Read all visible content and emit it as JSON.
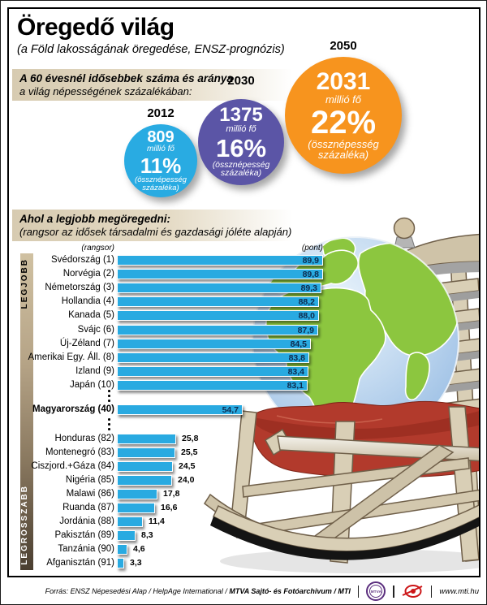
{
  "title": "Öregedő világ",
  "subtitle": "(a Föld lakosságának öregedése, ENSZ-prognózis)",
  "intro": {
    "line1": "A 60 évesnél idősebbek száma és aránya",
    "line2": "a világ népességének százalékában:"
  },
  "bubbles": [
    {
      "year": "2012",
      "value": "809",
      "unit": "millió fő",
      "pct": "11%",
      "note": "(össznépesség százaléka)",
      "color": "#29abe2"
    },
    {
      "year": "2030",
      "value": "1375",
      "unit": "millió fő",
      "pct": "16%",
      "note": "(össznépesség százaléka)",
      "color": "#5b55a6"
    },
    {
      "year": "2050",
      "value": "2031",
      "unit": "millió fő",
      "pct": "22%",
      "note": "(össznépesség százaléka)",
      "color": "#f7941e"
    }
  ],
  "ranking": {
    "header1": "Ahol a legjobb megöregedni:",
    "header2": "(rangsor az idősek társadalmi és gazdasági jóléte alapján)",
    "col_left": "(rangsor)",
    "col_right": "(pont)",
    "side_top": "LEGJOBB",
    "side_bottom": "LEGROSSZABB",
    "bar_color": "#29aae1",
    "groups": [
      {
        "name": "top",
        "rows": [
          {
            "label": "Svédország (1)",
            "value": 89.9,
            "display": "89,9"
          },
          {
            "label": "Norvégia (2)",
            "value": 89.8,
            "display": "89,8"
          },
          {
            "label": "Németország (3)",
            "value": 89.3,
            "display": "89,3"
          },
          {
            "label": "Hollandia (4)",
            "value": 88.2,
            "display": "88,2"
          },
          {
            "label": "Kanada (5)",
            "value": 88.0,
            "display": "88,0"
          },
          {
            "label": "Svájc (6)",
            "value": 87.9,
            "display": "87,9"
          },
          {
            "label": "Új-Zéland (7)",
            "value": 84.5,
            "display": "84,5"
          },
          {
            "label": "Amerikai Egy. Áll. (8)",
            "value": 83.8,
            "display": "83,8"
          },
          {
            "label": "Izland (9)",
            "value": 83.4,
            "display": "83,4"
          },
          {
            "label": "Japán (10)",
            "value": 83.1,
            "display": "83,1"
          }
        ]
      },
      {
        "name": "hungary",
        "rows": [
          {
            "label": "Magyarország (40)",
            "value": 54.7,
            "display": "54,7",
            "bold": true
          }
        ]
      },
      {
        "name": "bottom",
        "rows": [
          {
            "label": "Honduras (82)",
            "value": 25.8,
            "display": "25,8"
          },
          {
            "label": "Montenegró (83)",
            "value": 25.5,
            "display": "25,5"
          },
          {
            "label": "Ciszjord.+Gáza (84)",
            "value": 24.5,
            "display": "24,5"
          },
          {
            "label": "Nigéria (85)",
            "value": 24.0,
            "display": "24,0"
          },
          {
            "label": "Malawi (86)",
            "value": 17.8,
            "display": "17,8"
          },
          {
            "label": "Ruanda (87)",
            "value": 16.6,
            "display": "16,6"
          },
          {
            "label": "Jordánia (88)",
            "value": 11.4,
            "display": "11,4"
          },
          {
            "label": "Pakisztán (89)",
            "value": 8.3,
            "display": "8,3"
          },
          {
            "label": "Tanzánia (90)",
            "value": 4.6,
            "display": "4,6"
          },
          {
            "label": "Afganisztán (91)",
            "value": 3.3,
            "display": "3,3"
          }
        ]
      }
    ]
  },
  "footer": {
    "source_normal": "Forrás: ENSZ Népesedési Alap / HelpAge International / ",
    "source_bold": "MTVA Sajtó- és Fotóarchivum / MTI",
    "mtva_text": "MTVA",
    "site": "www.mti.hu"
  },
  "chart_data": [
    {
      "type": "bar",
      "variant": "proportional-bubbles",
      "title": "A 60 évesnél idősebbek száma és aránya a világ népességének százalékában (ENSZ-prognózis)",
      "categories": [
        "2012",
        "2030",
        "2050"
      ],
      "series": [
        {
          "name": "millió fő",
          "values": [
            809,
            1375,
            2031
          ]
        },
        {
          "name": "össznépesség százaléka (%)",
          "values": [
            11,
            16,
            22
          ]
        }
      ],
      "legend_position": "none",
      "colors": [
        "#29abe2",
        "#5b55a6",
        "#f7941e"
      ]
    },
    {
      "type": "bar",
      "orientation": "horizontal",
      "title": "Ahol a legjobb megöregedni (rangsor az idősek társadalmi és gazdasági jóléte alapján)",
      "xlabel": "(pont)",
      "ylabel": "(rangsor)",
      "xlim": [
        0,
        90
      ],
      "grid": false,
      "categories": [
        "Svédország",
        "Norvégia",
        "Németország",
        "Hollandia",
        "Kanada",
        "Svájc",
        "Új-Zéland",
        "Amerikai Egy. Áll.",
        "Izland",
        "Japán",
        "Magyarország",
        "Honduras",
        "Montenegró",
        "Ciszjord.+Gáza",
        "Nigéria",
        "Malawi",
        "Ruanda",
        "Jordánia",
        "Pakisztán",
        "Tanzánia",
        "Afganisztán"
      ],
      "ranks": [
        1,
        2,
        3,
        4,
        5,
        6,
        7,
        8,
        9,
        10,
        40,
        82,
        83,
        84,
        85,
        86,
        87,
        88,
        89,
        90,
        91
      ],
      "values": [
        89.9,
        89.8,
        89.3,
        88.2,
        88.0,
        87.9,
        84.5,
        83.8,
        83.4,
        83.1,
        54.7,
        25.8,
        25.5,
        24.5,
        24.0,
        17.8,
        16.6,
        11.4,
        8.3,
        4.6,
        3.3
      ],
      "bar_color": "#29aae1"
    }
  ]
}
